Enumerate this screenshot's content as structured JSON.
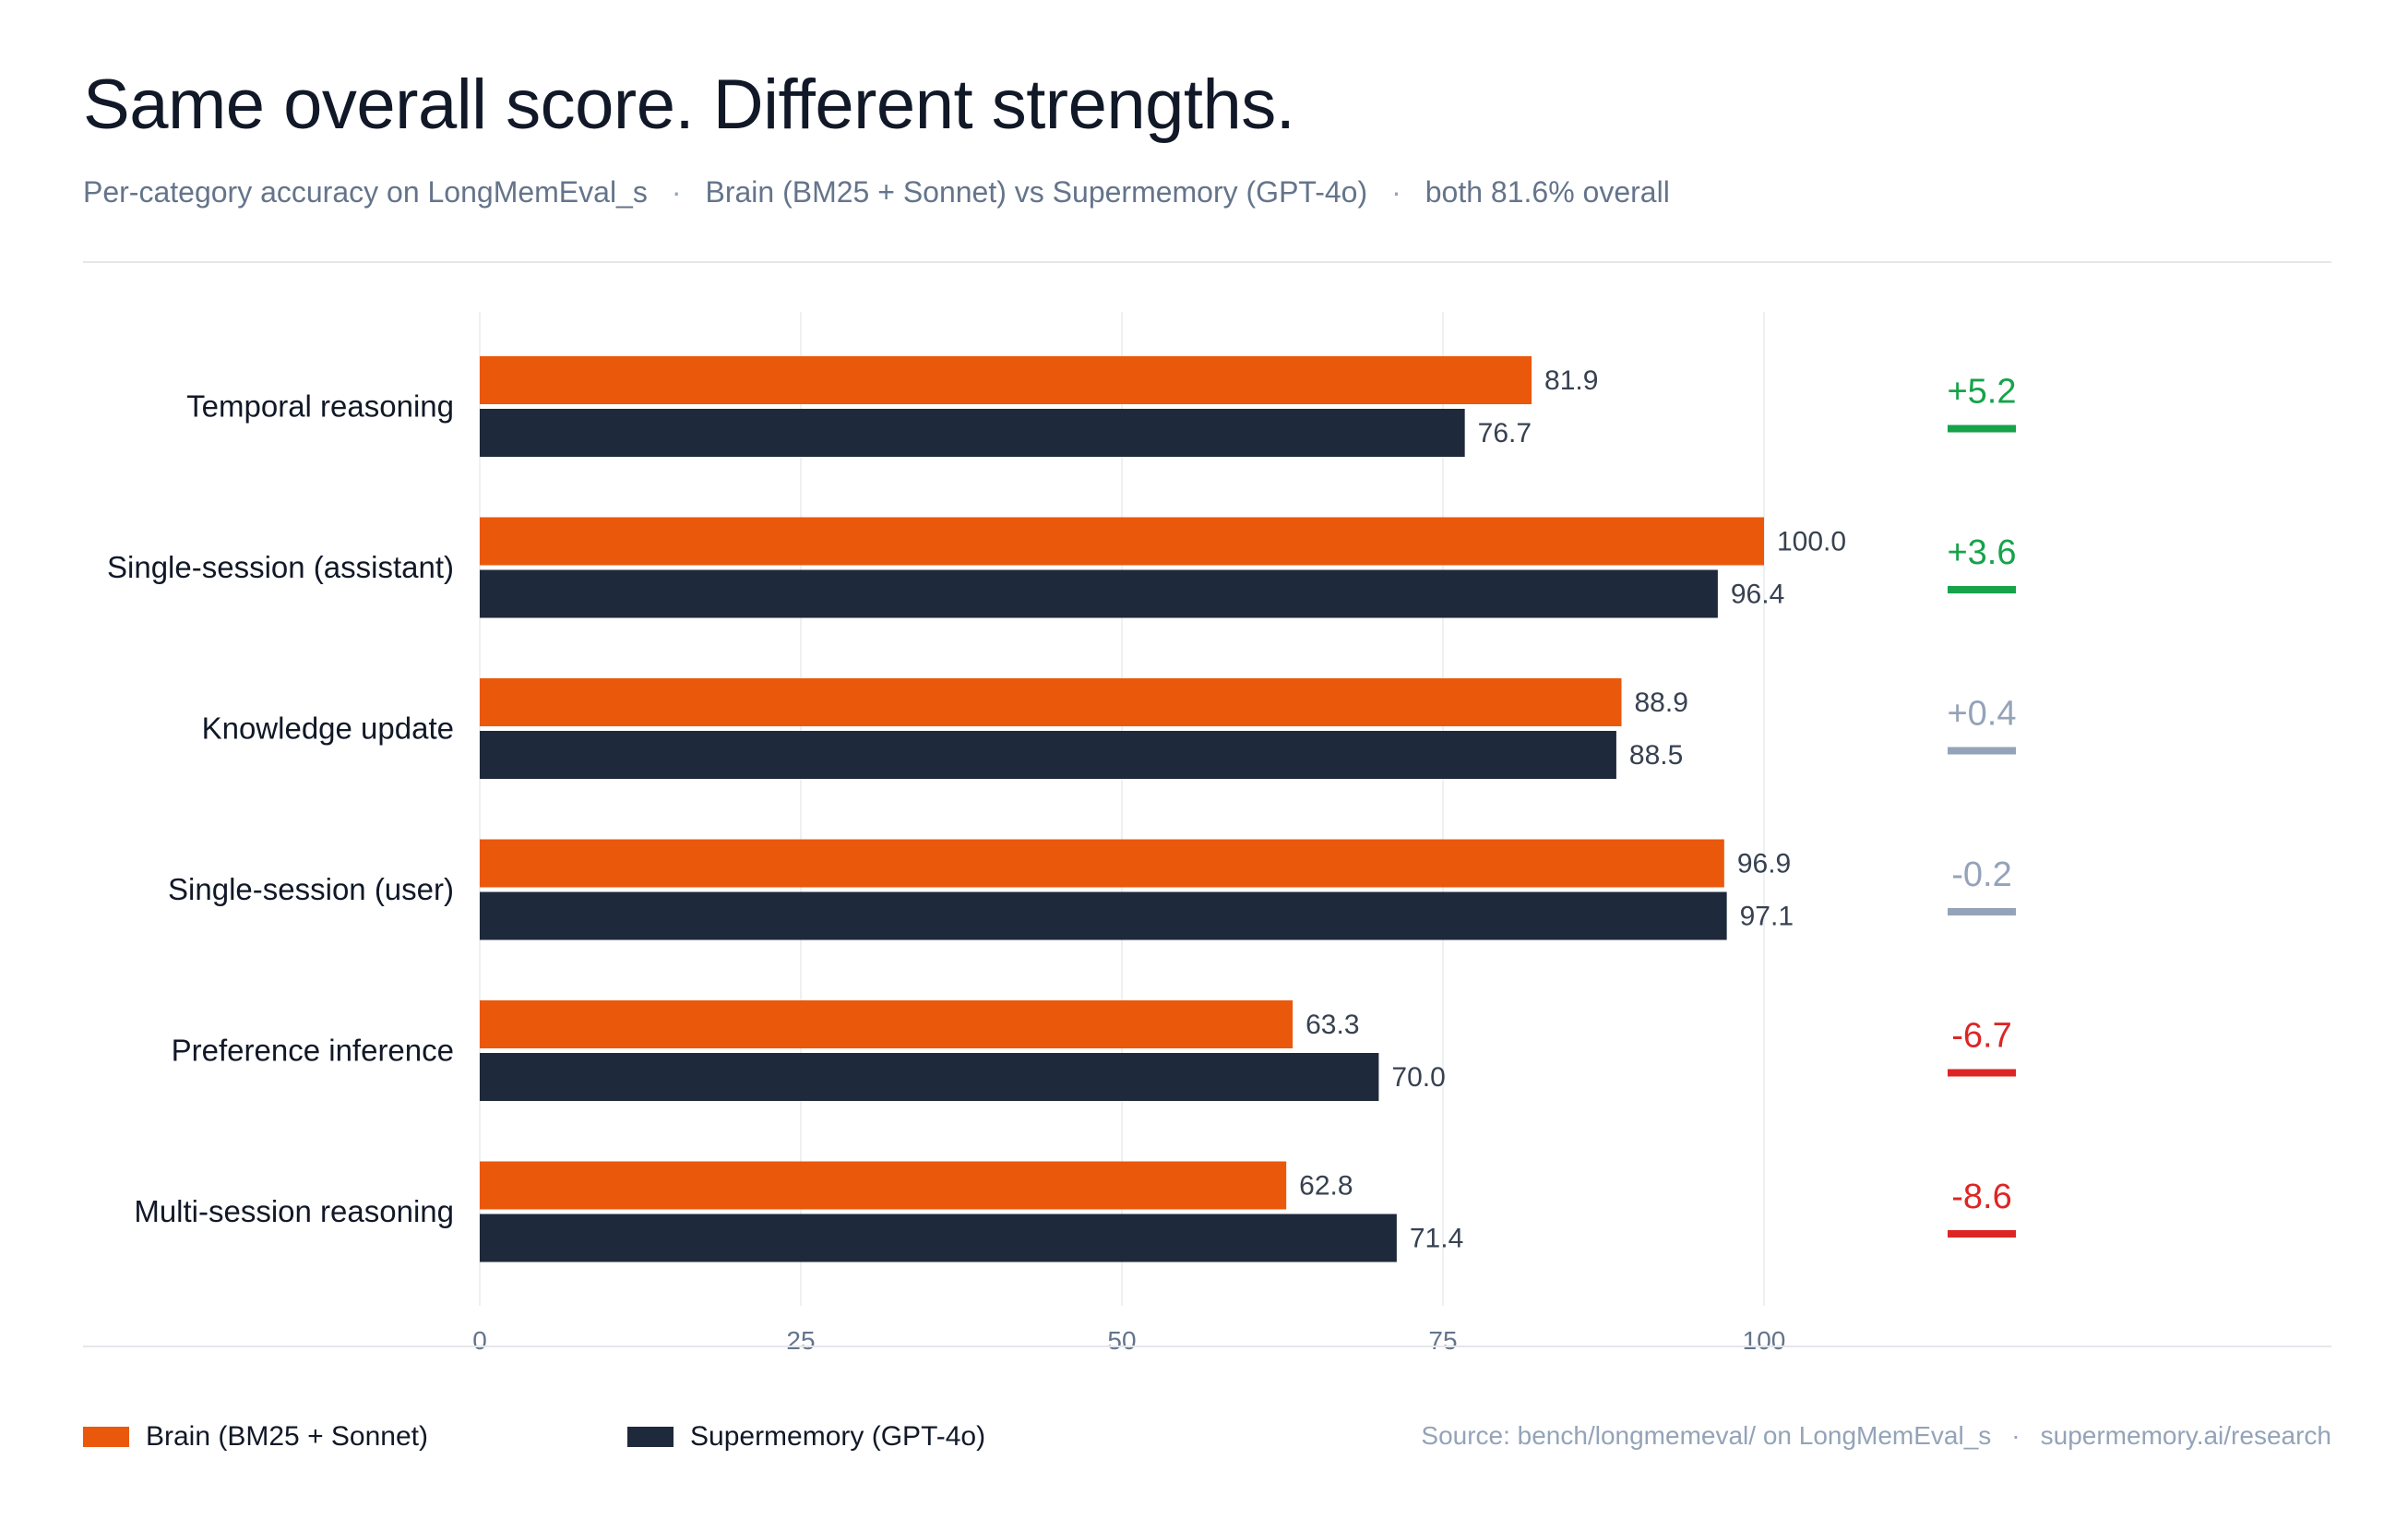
{
  "title": "Same overall score. Different strengths.",
  "subtitle": {
    "part1": "Per-category accuracy on LongMemEval_s",
    "part2": "Brain (BM25 + Sonnet) vs Supermemory (GPT-4o)",
    "part3": "both 81.6% overall",
    "separator": "·"
  },
  "source": {
    "part1": "Source: bench/longmemeval/ on LongMemEval_s",
    "part2": "supermemory.ai/research",
    "separator": "·"
  },
  "colors": {
    "brain": "#ea580c",
    "supermemory": "#1e293b",
    "positive": "#16a34a",
    "neutral": "#94a3b8",
    "negative": "#dc2626"
  },
  "chart_data": {
    "type": "bar",
    "orientation": "horizontal",
    "categories": [
      "Temporal reasoning",
      "Single-session (assistant)",
      "Knowledge update",
      "Single-session (user)",
      "Preference inference",
      "Multi-session reasoning"
    ],
    "series": [
      {
        "name": "Brain (BM25 + Sonnet)",
        "values": [
          81.9,
          100.0,
          88.9,
          96.9,
          63.3,
          62.8
        ]
      },
      {
        "name": "Supermemory (GPT-4o)",
        "values": [
          76.7,
          96.4,
          88.5,
          97.1,
          70.0,
          71.4
        ]
      }
    ],
    "differences": [
      "+5.2",
      "+3.6",
      "+0.4",
      "-0.2",
      "-6.7",
      "-8.6"
    ],
    "difference_tone": [
      "positive",
      "positive",
      "neutral",
      "neutral",
      "negative",
      "negative"
    ],
    "xlim": [
      0,
      100
    ],
    "xticks": [
      0,
      25,
      50,
      75,
      100
    ],
    "grid": true,
    "legend_position": "bottom-left"
  }
}
